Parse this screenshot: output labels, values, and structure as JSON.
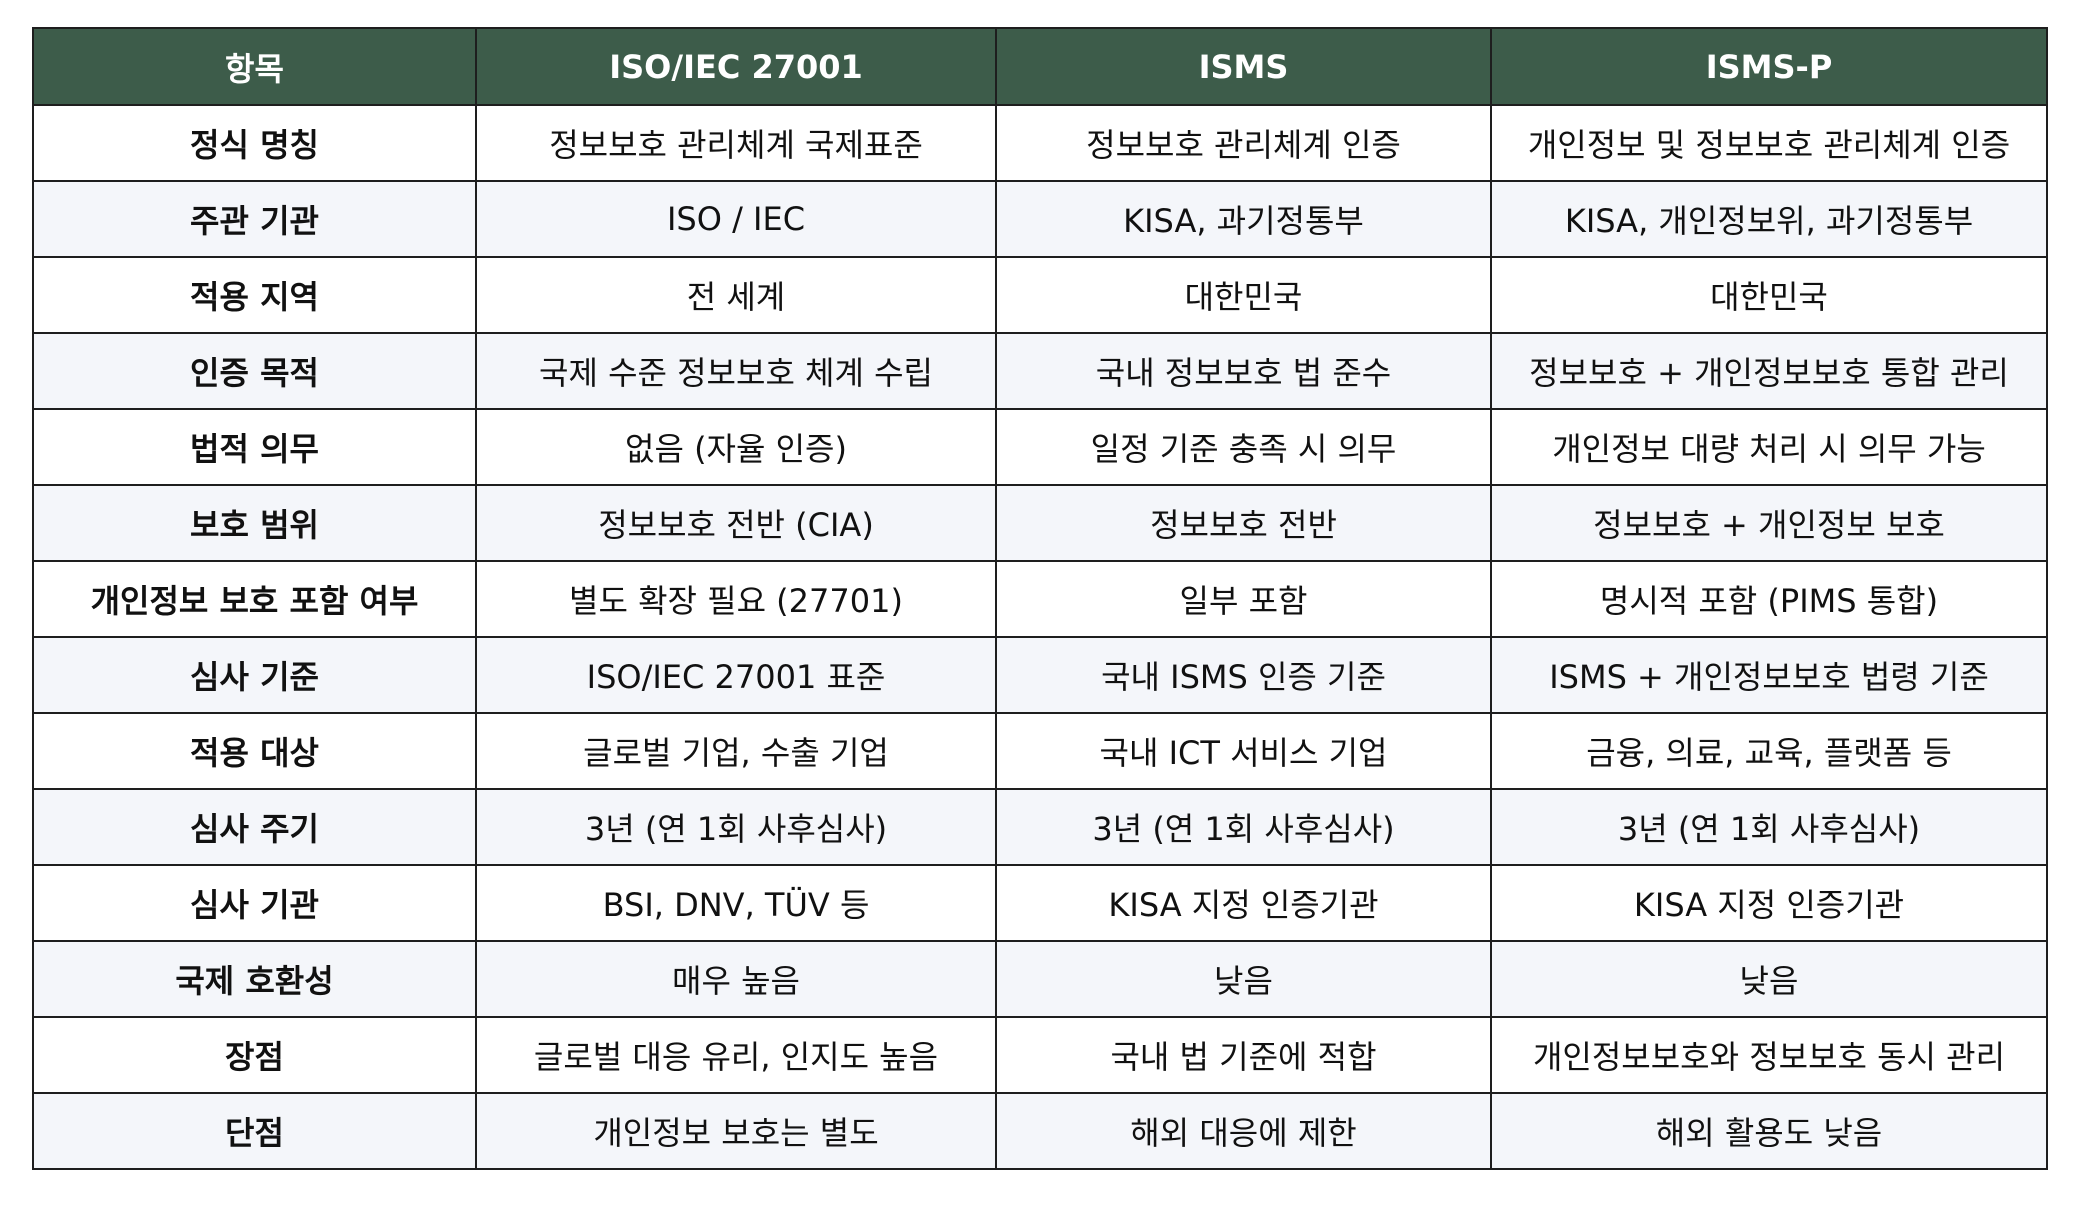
{
  "colors": {
    "header_bg": "#3d5c4a",
    "header_text": "#ffffff",
    "stripe_bg": "#f4f6fa",
    "border": "#1e1e1e"
  },
  "table": {
    "headers": [
      "항목",
      "ISO/IEC 27001",
      "ISMS",
      "ISMS-P"
    ],
    "rows": [
      [
        "정식 명칭",
        "정보보호 관리체계 국제표준",
        "정보보호 관리체계 인증",
        "개인정보 및 정보보호 관리체계 인증"
      ],
      [
        "주관 기관",
        "ISO / IEC",
        "KISA, 과기정통부",
        "KISA, 개인정보위, 과기정통부"
      ],
      [
        "적용 지역",
        "전 세계",
        "대한민국",
        "대한민국"
      ],
      [
        "인증 목적",
        "국제 수준 정보보호 체계 수립",
        "국내 정보보호 법 준수",
        "정보보호 + 개인정보보호 통합 관리"
      ],
      [
        "법적 의무",
        "없음 (자율 인증)",
        "일정 기준 충족 시 의무",
        "개인정보 대량 처리 시 의무 가능"
      ],
      [
        "보호 범위",
        "정보보호 전반 (CIA)",
        "정보보호 전반",
        "정보보호 + 개인정보 보호"
      ],
      [
        "개인정보 보호 포함 여부",
        "별도 확장 필요 (27701)",
        "일부 포함",
        "명시적 포함 (PIMS 통합)"
      ],
      [
        "심사 기준",
        "ISO/IEC 27001 표준",
        "국내 ISMS 인증 기준",
        "ISMS + 개인정보보호 법령 기준"
      ],
      [
        "적용 대상",
        "글로벌 기업, 수출 기업",
        "국내 ICT 서비스 기업",
        "금융, 의료, 교육, 플랫폼 등"
      ],
      [
        "심사 주기",
        "3년 (연 1회 사후심사)",
        "3년 (연 1회 사후심사)",
        "3년 (연 1회 사후심사)"
      ],
      [
        "심사 기관",
        "BSI, DNV, TÜV 등",
        "KISA 지정 인증기관",
        "KISA 지정 인증기관"
      ],
      [
        "국제 호환성",
        "매우 높음",
        "낮음",
        "낮음"
      ],
      [
        "장점",
        "글로벌 대응 유리, 인지도 높음",
        "국내 법 기준에 적합",
        "개인정보보호와 정보보호 동시 관리"
      ],
      [
        "단점",
        "개인정보 보호는 별도",
        "해외 대응에 제한",
        "해외 활용도 낮음"
      ]
    ]
  }
}
